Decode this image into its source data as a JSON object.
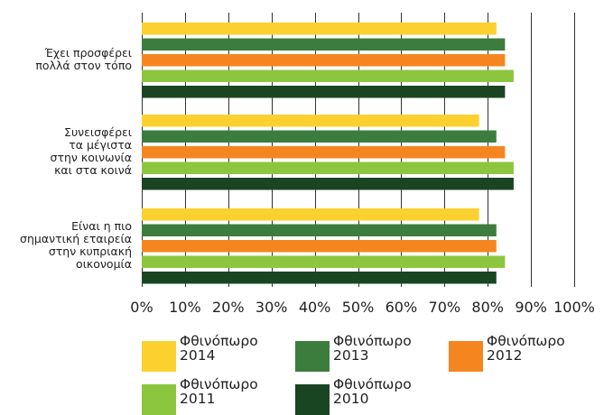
{
  "chart_data": {
    "type": "bar",
    "orientation": "horizontal",
    "categories": [
      [
        "Έχει προσφέρει",
        "πολλά στον τόπο"
      ],
      [
        "Συνεισφέρει",
        "τα μέγιστα",
        "στην κοινωνία",
        "και στα κοινά"
      ],
      [
        "Είναι η πιο",
        "σημαντική εταιρεία",
        "στην κυπριακή",
        "οικονομία"
      ]
    ],
    "series": [
      {
        "name": "Φθινόπωρο 2014",
        "color": "#fcd12f",
        "values": [
          82,
          78,
          78
        ]
      },
      {
        "name": "Φθινόπωρο 2013",
        "color": "#3c7d3d",
        "values": [
          84,
          82,
          82
        ]
      },
      {
        "name": "Φθινόπωρο 2012",
        "color": "#f5861f",
        "values": [
          84,
          84,
          82
        ]
      },
      {
        "name": "Φθινόπωρο 2011",
        "color": "#8cc63f",
        "values": [
          86,
          86,
          84
        ]
      },
      {
        "name": "Φθινόπωρο 2010",
        "color": "#1a4523",
        "values": [
          84,
          86,
          82
        ]
      }
    ],
    "xlim": [
      0,
      100
    ],
    "xticks": [
      "0%",
      "10%",
      "20%",
      "30%",
      "40%",
      "50%",
      "60%",
      "70%",
      "80%",
      "90%",
      "100%"
    ],
    "grid": true,
    "legend_position": "bottom"
  },
  "legend": [
    {
      "line1": "Φθινόπωρο",
      "line2": "2014",
      "color": "#fcd12f"
    },
    {
      "line1": "Φθινόπωρο",
      "line2": "2013",
      "color": "#3c7d3d"
    },
    {
      "line1": "Φθινόπωρο",
      "line2": "2012",
      "color": "#f5861f"
    },
    {
      "line1": "Φθινόπωρο",
      "line2": "2011",
      "color": "#8cc63f"
    },
    {
      "line1": "Φθινόπωρο",
      "line2": "2010",
      "color": "#1a4523"
    }
  ]
}
